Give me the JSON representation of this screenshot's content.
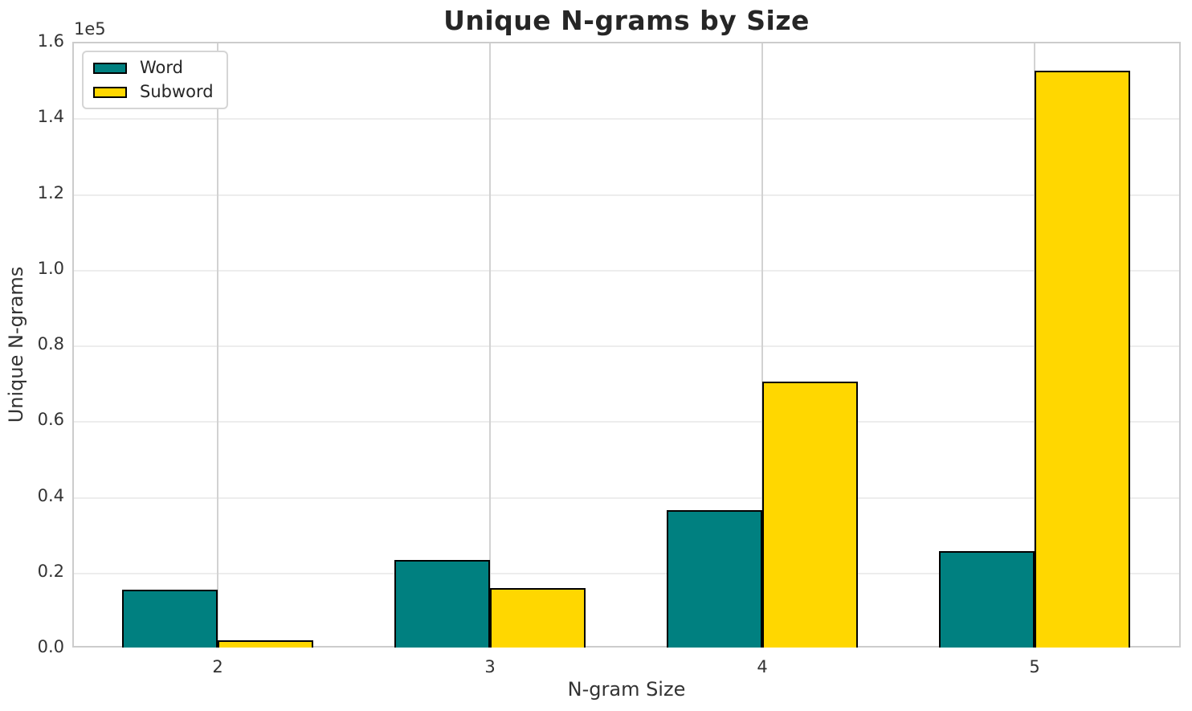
{
  "chart_data": {
    "type": "bar",
    "title": "Unique N-grams by Size",
    "xlabel": "N-gram Size",
    "ylabel": "Unique N-grams",
    "offset_text": "1e5",
    "categories": [
      "2",
      "3",
      "4",
      "5"
    ],
    "series": [
      {
        "name": "Word",
        "color": "#008080",
        "values": [
          15200,
          23200,
          36300,
          25500
        ]
      },
      {
        "name": "Subword",
        "color": "#FFD700",
        "values": [
          1900,
          15700,
          70200,
          152400
        ]
      }
    ],
    "ylim": [
      0,
      160000
    ],
    "ytick_step": 20000,
    "yticks": [
      "0.0",
      "0.2",
      "0.4",
      "0.6",
      "0.8",
      "1.0",
      "1.2",
      "1.4",
      "1.6"
    ],
    "grid": true,
    "legend_position": "upper left",
    "bar_edge_color": "#000000",
    "background_color": "#ffffff",
    "grid_color": "#ededed",
    "spine_color": "#cccccc",
    "text_color": "#333333",
    "title_color": "#262626"
  }
}
